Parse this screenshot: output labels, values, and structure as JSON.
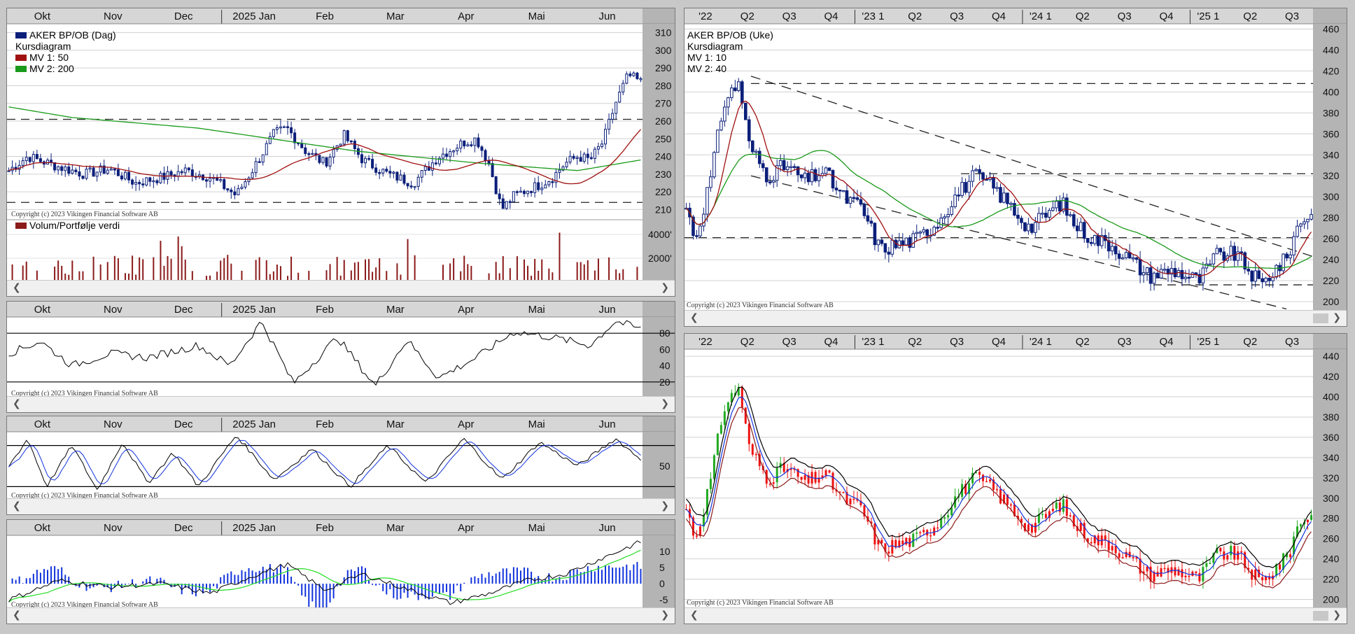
{
  "app": {
    "copyright": "Copyright (c) 2023 Vikingen Financial Software AB"
  },
  "colors": {
    "price": "#0b1f7a",
    "ma1": "#a01010",
    "ma2": "#1a9a1a",
    "volume": "#8b1a1a",
    "up": "#22aa22",
    "down": "#ee1111",
    "band_blue": "#1133dd"
  },
  "left": {
    "months": [
      "Okt",
      "Nov",
      "Dec",
      "2025 Jan",
      "Feb",
      "Mar",
      "Apr",
      "Mai",
      "Jun"
    ],
    "price": {
      "legend": {
        "title": "AKER BP/OB (Dag)",
        "subtitle": "Kursdiagram",
        "ma1": "MV 1: 50",
        "ma2": "MV 2: 200"
      },
      "ylabels": [
        "310",
        "300",
        "290",
        "280",
        "270",
        "260",
        "250",
        "240",
        "230",
        "220",
        "210"
      ],
      "ylim": [
        205,
        315
      ],
      "support": 214,
      "resistance": 261
    },
    "volume": {
      "legend": "Volum/Portfølje verdi",
      "ylabels": [
        "4000'",
        "2000'"
      ]
    },
    "osc1": {
      "ylabels": [
        "80",
        "60",
        "40",
        "20"
      ],
      "lines": [
        80,
        20
      ]
    },
    "osc2": {
      "ylabels": [
        "50"
      ],
      "lines": [
        80,
        20
      ]
    },
    "osc3": {
      "ylabels": [
        "10",
        "5",
        "0",
        "-5"
      ]
    }
  },
  "right": {
    "quarters": [
      "'22",
      "Q2",
      "Q3",
      "Q4",
      "'23 1",
      "Q2",
      "Q3",
      "Q4",
      "'24 1",
      "Q2",
      "Q3",
      "Q4",
      "'25 1",
      "Q2",
      "Q3"
    ],
    "top": {
      "legend": {
        "title": "AKER BP/OB (Uke)",
        "subtitle": "Kursdiagram",
        "ma1": "MV 1: 10",
        "ma2": "MV 2: 40"
      },
      "ylabels": [
        "460",
        "440",
        "420",
        "400",
        "380",
        "360",
        "340",
        "320",
        "300",
        "280",
        "260",
        "240",
        "220",
        "200"
      ],
      "ylim": [
        190,
        465
      ],
      "lines": [
        408,
        322,
        261,
        216
      ]
    },
    "bottom": {
      "ylabels": [
        "440",
        "420",
        "400",
        "380",
        "360",
        "340",
        "320",
        "300",
        "280",
        "260",
        "240",
        "220",
        "200"
      ],
      "ylim": [
        190,
        447
      ]
    }
  },
  "chart_data": [
    {
      "type": "candlestick",
      "title": "AKER BP/OB (Dag)",
      "subtitle": "Kursdiagram",
      "x": [
        "Okt",
        "Nov",
        "Dec",
        "2025 Jan",
        "Feb",
        "Mar",
        "Apr",
        "Mai",
        "Jun"
      ],
      "ylim": [
        205,
        315
      ],
      "series": [
        {
          "name": "MV 1: 50"
        },
        {
          "name": "MV 2: 200"
        }
      ],
      "ypath": [
        [
          0,
          232
        ],
        [
          0.03,
          240
        ],
        [
          0.08,
          234
        ],
        [
          0.12,
          230
        ],
        [
          0.16,
          233
        ],
        [
          0.2,
          225
        ],
        [
          0.24,
          228
        ],
        [
          0.28,
          232
        ],
        [
          0.32,
          228
        ],
        [
          0.36,
          218
        ],
        [
          0.39,
          235
        ],
        [
          0.42,
          253
        ],
        [
          0.44,
          256
        ],
        [
          0.47,
          243
        ],
        [
          0.5,
          236
        ],
        [
          0.53,
          252
        ],
        [
          0.56,
          238
        ],
        [
          0.6,
          230
        ],
        [
          0.64,
          225
        ],
        [
          0.68,
          240
        ],
        [
          0.72,
          248
        ],
        [
          0.74,
          250
        ],
        [
          0.76,
          236
        ],
        [
          0.78,
          210
        ],
        [
          0.8,
          218
        ],
        [
          0.84,
          224
        ],
        [
          0.86,
          228
        ],
        [
          0.88,
          236
        ],
        [
          0.9,
          240
        ],
        [
          0.92,
          238
        ],
        [
          0.94,
          248
        ],
        [
          0.96,
          270
        ],
        [
          0.98,
          286
        ],
        [
          1,
          282
        ]
      ]
    },
    {
      "type": "bar",
      "title": "Volum/Portfølje verdi",
      "ylabels": [
        "4000'",
        "2000'"
      ]
    },
    {
      "type": "line",
      "ylim": [
        0,
        100
      ],
      "levels": [
        80,
        20
      ],
      "ypath": [
        [
          0,
          55
        ],
        [
          0.05,
          70
        ],
        [
          0.1,
          40
        ],
        [
          0.16,
          55
        ],
        [
          0.22,
          50
        ],
        [
          0.3,
          65
        ],
        [
          0.35,
          40
        ],
        [
          0.4,
          95
        ],
        [
          0.45,
          18
        ],
        [
          0.52,
          75
        ],
        [
          0.58,
          15
        ],
        [
          0.63,
          72
        ],
        [
          0.68,
          25
        ],
        [
          0.74,
          50
        ],
        [
          0.8,
          82
        ],
        [
          0.86,
          75
        ],
        [
          0.92,
          65
        ],
        [
          0.96,
          95
        ],
        [
          1,
          85
        ]
      ]
    },
    {
      "type": "line",
      "ylim": [
        0,
        100
      ],
      "levels": [
        80,
        20
      ],
      "ypath": [
        [
          0,
          50
        ],
        [
          0.03,
          90
        ],
        [
          0.06,
          20
        ],
        [
          0.1,
          80
        ],
        [
          0.14,
          15
        ],
        [
          0.18,
          85
        ],
        [
          0.22,
          25
        ],
        [
          0.26,
          70
        ],
        [
          0.3,
          20
        ],
        [
          0.36,
          95
        ],
        [
          0.42,
          30
        ],
        [
          0.48,
          75
        ],
        [
          0.54,
          20
        ],
        [
          0.6,
          80
        ],
        [
          0.66,
          25
        ],
        [
          0.72,
          90
        ],
        [
          0.78,
          30
        ],
        [
          0.84,
          85
        ],
        [
          0.9,
          50
        ],
        [
          0.96,
          90
        ],
        [
          1,
          60
        ]
      ]
    },
    {
      "type": "bar",
      "ylim": [
        -8,
        15
      ],
      "ypath": [
        [
          0,
          -5
        ],
        [
          0.08,
          1
        ],
        [
          0.16,
          -1
        ],
        [
          0.24,
          0
        ],
        [
          0.32,
          -3
        ],
        [
          0.38,
          2
        ],
        [
          0.44,
          6
        ],
        [
          0.5,
          -2
        ],
        [
          0.56,
          3
        ],
        [
          0.62,
          -1
        ],
        [
          0.7,
          -6
        ],
        [
          0.76,
          -3
        ],
        [
          0.82,
          1
        ],
        [
          0.88,
          3
        ],
        [
          0.94,
          8
        ],
        [
          1,
          13
        ]
      ]
    },
    {
      "type": "candlestick",
      "title": "AKER BP/OB (Uke)",
      "subtitle": "Kursdiagram",
      "x": [
        "'22",
        "Q2",
        "Q3",
        "Q4",
        "'23 1",
        "Q2",
        "Q3",
        "Q4",
        "'24 1",
        "Q2",
        "Q3",
        "Q4",
        "'25 1",
        "Q2",
        "Q3"
      ],
      "ylim": [
        190,
        465
      ],
      "levels": [
        408,
        322,
        261,
        216
      ],
      "series": [
        {
          "name": "MV 1: 10"
        },
        {
          "name": "MV 2: 40"
        }
      ],
      "ypath": [
        [
          0,
          290
        ],
        [
          0.015,
          260
        ],
        [
          0.04,
          320
        ],
        [
          0.06,
          390
        ],
        [
          0.085,
          410
        ],
        [
          0.1,
          350
        ],
        [
          0.13,
          320
        ],
        [
          0.16,
          330
        ],
        [
          0.19,
          315
        ],
        [
          0.22,
          325
        ],
        [
          0.25,
          300
        ],
        [
          0.28,
          290
        ],
        [
          0.31,
          250
        ],
        [
          0.34,
          255
        ],
        [
          0.37,
          260
        ],
        [
          0.4,
          275
        ],
        [
          0.43,
          300
        ],
        [
          0.46,
          320
        ],
        [
          0.49,
          310
        ],
        [
          0.52,
          290
        ],
        [
          0.55,
          270
        ],
        [
          0.58,
          285
        ],
        [
          0.6,
          295
        ],
        [
          0.62,
          275
        ],
        [
          0.65,
          260
        ],
        [
          0.68,
          255
        ],
        [
          0.71,
          240
        ],
        [
          0.74,
          225
        ],
        [
          0.78,
          230
        ],
        [
          0.82,
          220
        ],
        [
          0.85,
          245
        ],
        [
          0.88,
          245
        ],
        [
          0.9,
          230
        ],
        [
          0.92,
          215
        ],
        [
          0.94,
          230
        ],
        [
          0.96,
          240
        ],
        [
          0.98,
          275
        ],
        [
          1,
          285
        ]
      ]
    },
    {
      "type": "candlestick",
      "x": [
        "'22",
        "Q2",
        "Q3",
        "Q4",
        "'23 1",
        "Q2",
        "Q3",
        "Q4",
        "'24 1",
        "Q2",
        "Q3",
        "Q4",
        "'25 1",
        "Q2",
        "Q3"
      ],
      "ylim": [
        190,
        447
      ],
      "ypath": [
        [
          0,
          290
        ],
        [
          0.015,
          260
        ],
        [
          0.04,
          320
        ],
        [
          0.06,
          390
        ],
        [
          0.085,
          410
        ],
        [
          0.1,
          350
        ],
        [
          0.13,
          320
        ],
        [
          0.16,
          330
        ],
        [
          0.19,
          315
        ],
        [
          0.22,
          325
        ],
        [
          0.25,
          300
        ],
        [
          0.28,
          290
        ],
        [
          0.31,
          250
        ],
        [
          0.34,
          255
        ],
        [
          0.37,
          260
        ],
        [
          0.4,
          275
        ],
        [
          0.43,
          300
        ],
        [
          0.46,
          320
        ],
        [
          0.49,
          310
        ],
        [
          0.52,
          290
        ],
        [
          0.55,
          270
        ],
        [
          0.58,
          285
        ],
        [
          0.6,
          295
        ],
        [
          0.62,
          275
        ],
        [
          0.65,
          260
        ],
        [
          0.68,
          255
        ],
        [
          0.71,
          240
        ],
        [
          0.74,
          225
        ],
        [
          0.78,
          230
        ],
        [
          0.82,
          220
        ],
        [
          0.85,
          245
        ],
        [
          0.88,
          245
        ],
        [
          0.9,
          230
        ],
        [
          0.92,
          215
        ],
        [
          0.94,
          230
        ],
        [
          0.96,
          240
        ],
        [
          0.98,
          275
        ],
        [
          1,
          285
        ]
      ]
    }
  ]
}
